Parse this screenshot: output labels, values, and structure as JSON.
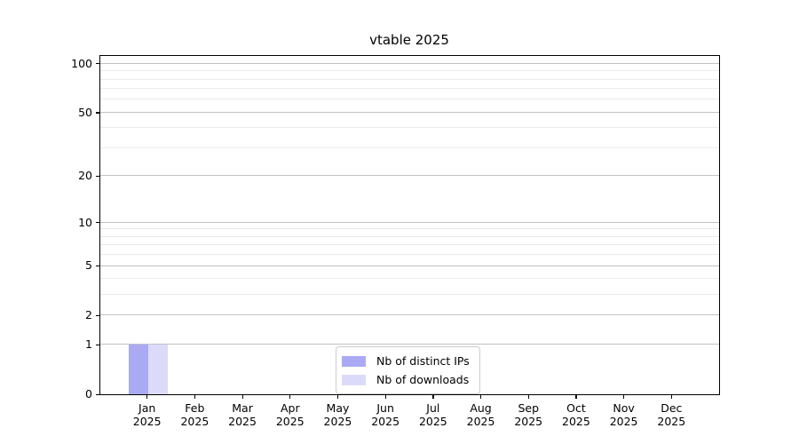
{
  "chart_data": {
    "type": "bar",
    "title": "vtable 2025",
    "x_year": "2025",
    "categories": [
      "Jan",
      "Feb",
      "Mar",
      "Apr",
      "May",
      "Jun",
      "Jul",
      "Aug",
      "Sep",
      "Oct",
      "Nov",
      "Dec"
    ],
    "series": [
      {
        "name": "Nb of distinct IPs",
        "color": "#aaaaf4",
        "values": [
          1,
          0,
          0,
          0,
          0,
          0,
          0,
          0,
          0,
          0,
          0,
          0
        ]
      },
      {
        "name": "Nb of downloads",
        "color": "#dbdbf9",
        "values": [
          1,
          0,
          0,
          0,
          0,
          0,
          0,
          0,
          0,
          0,
          0,
          0
        ]
      }
    ],
    "y_scale": "log1p",
    "ylim": [
      0,
      113
    ],
    "y_major_ticks": [
      0,
      1,
      2,
      5,
      10,
      20,
      50,
      100
    ],
    "y_minor_ticks": [
      3,
      4,
      6,
      7,
      8,
      9,
      30,
      40,
      60,
      70,
      80,
      90
    ],
    "grid": "horizontal-only",
    "legend_position": "bottom-center"
  },
  "colors": {
    "background": "#ffffff",
    "spine": "#000000",
    "grid_major": "#c2c2c2",
    "grid_minor": "#ebebeb",
    "legend_border": "#cccccc",
    "text": "#000000"
  }
}
